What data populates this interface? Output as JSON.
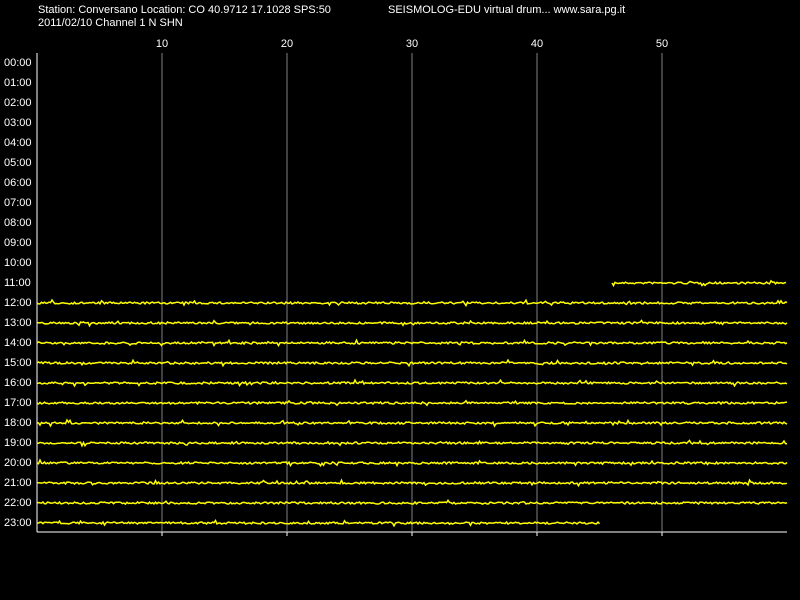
{
  "header": {
    "station": "Station: Conversano Location: CO 40.9712 17.1028 SPS:50",
    "program": "SEISMOLOG-EDU virtual drum... www.sara.pg.it",
    "channel": "2011/02/10  Channel 1 N SHN"
  },
  "minute_ticks": [
    10,
    20,
    30,
    40,
    50
  ],
  "minute_range": [
    0,
    60
  ],
  "hours": [
    {
      "label": "00:00"
    },
    {
      "label": "01:00"
    },
    {
      "label": "02:00"
    },
    {
      "label": "03:00"
    },
    {
      "label": "04:00"
    },
    {
      "label": "05:00"
    },
    {
      "label": "06:00"
    },
    {
      "label": "07:00"
    },
    {
      "label": "08:00"
    },
    {
      "label": "09:00"
    },
    {
      "label": "10:00"
    },
    {
      "label": "11:00",
      "start": 46,
      "end": 60
    },
    {
      "label": "12:00",
      "start": 0,
      "end": 60
    },
    {
      "label": "13:00",
      "start": 0,
      "end": 60
    },
    {
      "label": "14:00",
      "start": 0,
      "end": 60
    },
    {
      "label": "15:00",
      "start": 0,
      "end": 60
    },
    {
      "label": "16:00",
      "start": 0,
      "end": 60
    },
    {
      "label": "17:00",
      "start": 0,
      "end": 60
    },
    {
      "label": "18:00",
      "start": 0,
      "end": 60
    },
    {
      "label": "19:00",
      "start": 0,
      "end": 60
    },
    {
      "label": "20:00",
      "start": 0,
      "end": 60
    },
    {
      "label": "21:00",
      "start": 0,
      "end": 60
    },
    {
      "label": "22:00",
      "start": 0,
      "end": 60
    },
    {
      "label": "23:00",
      "start": 0,
      "end": 45
    }
  ]
}
